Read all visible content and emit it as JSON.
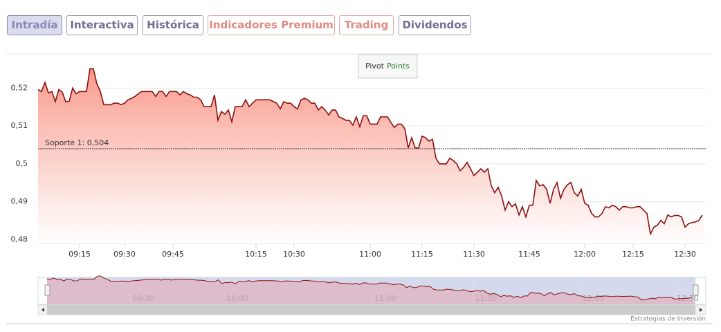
{
  "tabs": [
    {
      "label": "Intradía",
      "selected": true,
      "style": "normal"
    },
    {
      "label": "Interactiva",
      "selected": false,
      "style": "normal"
    },
    {
      "label": "Histórica",
      "selected": false,
      "style": "normal"
    },
    {
      "label": "Indicadores Premium",
      "selected": false,
      "style": "premium"
    },
    {
      "label": "Trading",
      "selected": false,
      "style": "premium"
    },
    {
      "label": "Dividendos",
      "selected": false,
      "style": "normal"
    }
  ],
  "chart_data": {
    "type": "area",
    "legend": [
      "Pivot",
      "Points"
    ],
    "color": "#8b0f0f",
    "values": [
      0.5196,
      0.5191,
      0.5215,
      0.5187,
      0.5191,
      0.5164,
      0.5196,
      0.5189,
      0.5164,
      0.5165,
      0.52,
      0.5185,
      0.5191,
      0.5191,
      0.5191,
      0.5251,
      0.5251,
      0.5211,
      0.5191,
      0.5156,
      0.5156,
      0.5156,
      0.516,
      0.516,
      0.5156,
      0.516,
      0.5169,
      0.5173,
      0.5178,
      0.5185,
      0.5191,
      0.5191,
      0.5191,
      0.5191,
      0.5178,
      0.5191,
      0.5191,
      0.5178,
      0.5191,
      0.5191,
      0.5191,
      0.5182,
      0.5191,
      0.5185,
      0.5182,
      0.5176,
      0.5176,
      0.5169,
      0.5151,
      0.5151,
      0.5151,
      0.5182,
      0.5115,
      0.5138,
      0.5131,
      0.5142,
      0.5111,
      0.5151,
      0.5151,
      0.5151,
      0.5169,
      0.5151,
      0.516,
      0.5169,
      0.5169,
      0.5169,
      0.5169,
      0.5169,
      0.5164,
      0.516,
      0.5145,
      0.5164,
      0.516,
      0.516,
      0.5151,
      0.5145,
      0.5169,
      0.5173,
      0.5169,
      0.516,
      0.516,
      0.5142,
      0.5151,
      0.5142,
      0.5129,
      0.5142,
      0.5142,
      0.5124,
      0.512,
      0.5115,
      0.5115,
      0.5102,
      0.5124,
      0.5098,
      0.5127,
      0.5127,
      0.5105,
      0.5105,
      0.5105,
      0.5124,
      0.5124,
      0.5124,
      0.5109,
      0.5096,
      0.5105,
      0.5105,
      0.5093,
      0.5042,
      0.5069,
      0.5042,
      0.5042,
      0.5073,
      0.5069,
      0.506,
      0.5065,
      0.5015,
      0.5,
      0.5,
      0.5,
      0.5015,
      0.5009,
      0.5,
      0.4982,
      0.4991,
      0.5004,
      0.4987,
      0.4969,
      0.4978,
      0.4987,
      0.4978,
      0.4987,
      0.4942,
      0.4924,
      0.4938,
      0.4915,
      0.4878,
      0.49,
      0.4887,
      0.4895,
      0.4865,
      0.4887,
      0.486,
      0.4891,
      0.4891,
      0.4956,
      0.4942,
      0.4945,
      0.4933,
      0.4896,
      0.4933,
      0.4951,
      0.4909,
      0.4933,
      0.4945,
      0.4951,
      0.4924,
      0.4915,
      0.4933,
      0.4896,
      0.4891,
      0.4869,
      0.486,
      0.486,
      0.4869,
      0.4887,
      0.4884,
      0.4891,
      0.4887,
      0.4878,
      0.4887,
      0.4887,
      0.4884,
      0.4884,
      0.4887,
      0.4887,
      0.4878,
      0.4869,
      0.4815,
      0.4833,
      0.4838,
      0.4851,
      0.4842,
      0.4865,
      0.486,
      0.4864,
      0.4864,
      0.486,
      0.4833,
      0.4842,
      0.4845,
      0.4847,
      0.4851,
      0.4865
    ],
    "xlim": [
      0,
      193
    ],
    "xticks": [
      {
        "value": 12,
        "label": "09:15"
      },
      {
        "value": 25,
        "label": "09:30"
      },
      {
        "value": 39,
        "label": "09:45"
      },
      {
        "value": 63,
        "label": "10:15"
      },
      {
        "value": 74,
        "label": "10:30"
      },
      {
        "value": 96,
        "label": "11:00"
      },
      {
        "value": 111,
        "label": "11:15"
      },
      {
        "value": 126,
        "label": "11:30"
      },
      {
        "value": 142,
        "label": "11:45"
      },
      {
        "value": 158,
        "label": "12:00"
      },
      {
        "value": 172,
        "label": "12:15"
      },
      {
        "value": 187,
        "label": "12:30"
      }
    ],
    "ylim": [
      0.479,
      0.529
    ],
    "yticks": [
      {
        "value": 0.48,
        "label": "0,48"
      },
      {
        "value": 0.49,
        "label": "0,49"
      },
      {
        "value": 0.5,
        "label": "0,5"
      },
      {
        "value": 0.51,
        "label": "0,51"
      },
      {
        "value": 0.52,
        "label": "0,52"
      }
    ],
    "grid": true,
    "support": {
      "value": 0.504,
      "label": "Soporte 1: 0,504"
    },
    "navigator_xticks": [
      {
        "value": 25,
        "label": "09:30"
      },
      {
        "value": 53,
        "label": "10:00"
      },
      {
        "value": 97,
        "label": "11:00"
      },
      {
        "value": 127,
        "label": "11:30"
      },
      {
        "value": 159,
        "label": "12:00"
      },
      {
        "value": 187,
        "label": "12:30"
      }
    ],
    "credit": "Estrategias de Inversión"
  }
}
